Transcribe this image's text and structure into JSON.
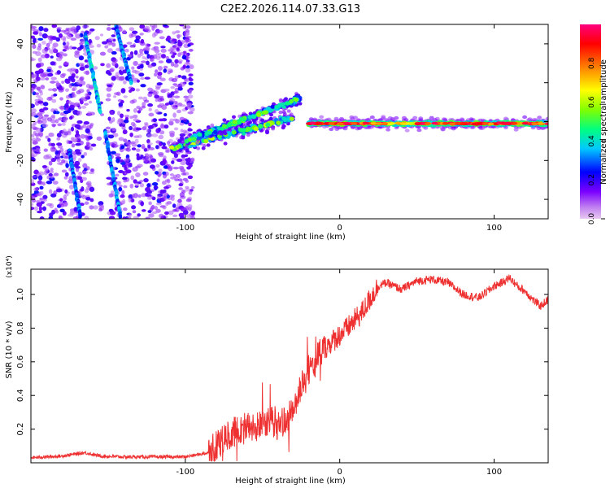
{
  "title": "C2E2.2026.114.07.33.G13",
  "chart_data": [
    {
      "type": "heatmap",
      "title": "C2E2.2026.114.07.33.G13",
      "xlabel": "Height of straight line (km)",
      "ylabel": "Frequency (Hz)",
      "xlim": [
        -200,
        135
      ],
      "ylim": [
        -50,
        50
      ],
      "x_ticks": [
        -100,
        0,
        100
      ],
      "x_tick_labels": [
        "-100",
        "0",
        "100"
      ],
      "y_ticks": [
        -40,
        -20,
        0,
        20,
        40
      ],
      "y_tick_labels": [
        "-40",
        "-20",
        "0",
        "20",
        "40"
      ],
      "colorbar": {
        "label": "Normalized spectral amplitude",
        "range": [
          0,
          1
        ],
        "ticks": [
          0.0,
          0.2,
          0.4,
          0.6,
          0.8
        ],
        "tick_labels": [
          "0.0",
          "0.2",
          "0.4",
          "0.6",
          "0.8"
        ],
        "colormap": [
          "#e8c8f0",
          "#7b00ff",
          "#0000ff",
          "#00c8ff",
          "#00ff80",
          "#80ff00",
          "#ffff00",
          "#ff8000",
          "#ff0000",
          "#ff0080"
        ]
      },
      "features": {
        "noise_region_x": [
          -200,
          -95
        ],
        "diagonal_traces": [
          {
            "x": [
              -165,
              -155
            ],
            "y": [
              45,
              5
            ],
            "amp": 0.35
          },
          {
            "x": [
              -145,
              -135
            ],
            "y": [
              49,
              20
            ],
            "amp": 0.3
          },
          {
            "x": [
              -152,
              -142
            ],
            "y": [
              -5,
              -49
            ],
            "amp": 0.3
          },
          {
            "x": [
              -175,
              -168
            ],
            "y": [
              -15,
              -49
            ],
            "amp": 0.28
          }
        ],
        "signal_branch_lower": {
          "x": [
            -110,
            -30
          ],
          "y": [
            -14,
            2
          ],
          "amp": 0.5
        },
        "signal_branch_upper": {
          "x": [
            -100,
            -25
          ],
          "y": [
            -10,
            12
          ],
          "amp": 0.45
        },
        "signal_flat": {
          "x": [
            -20,
            135
          ],
          "y": [
            -1,
            -1
          ],
          "amp": 0.95
        }
      }
    },
    {
      "type": "line",
      "xlabel": "Height of straight line (km)",
      "ylabel": "SNR (10 * v/v)",
      "yscale_label": "(x10⁴)",
      "xlim": [
        -200,
        135
      ],
      "ylim": [
        0,
        1.15
      ],
      "x_ticks": [
        -100,
        0,
        100
      ],
      "x_tick_labels": [
        "-100",
        "0",
        "100"
      ],
      "y_ticks": [
        0.2,
        0.4,
        0.6,
        0.8,
        1.0
      ],
      "y_tick_labels": [
        "0.2",
        "0.4",
        "0.6",
        "0.8",
        "1.0"
      ],
      "color": "#ee3030",
      "x": [
        -200,
        -180,
        -165,
        -155,
        -140,
        -120,
        -100,
        -85,
        -80,
        -75,
        -70,
        -65,
        -60,
        -55,
        -50,
        -45,
        -40,
        -35,
        -30,
        -25,
        -22,
        -20,
        -15,
        -10,
        -5,
        0,
        5,
        10,
        15,
        20,
        25,
        30,
        35,
        40,
        50,
        60,
        70,
        80,
        90,
        100,
        105,
        110,
        115,
        120,
        125,
        130,
        135
      ],
      "y": [
        0.03,
        0.04,
        0.06,
        0.04,
        0.035,
        0.035,
        0.035,
        0.06,
        0.1,
        0.14,
        0.18,
        0.2,
        0.22,
        0.2,
        0.24,
        0.25,
        0.22,
        0.26,
        0.3,
        0.45,
        0.5,
        0.55,
        0.62,
        0.68,
        0.72,
        0.76,
        0.8,
        0.85,
        0.9,
        0.98,
        1.05,
        1.07,
        1.05,
        1.03,
        1.08,
        1.09,
        1.07,
        1.0,
        0.98,
        1.05,
        1.07,
        1.1,
        1.05,
        1.02,
        0.97,
        0.93,
        0.97
      ]
    }
  ]
}
